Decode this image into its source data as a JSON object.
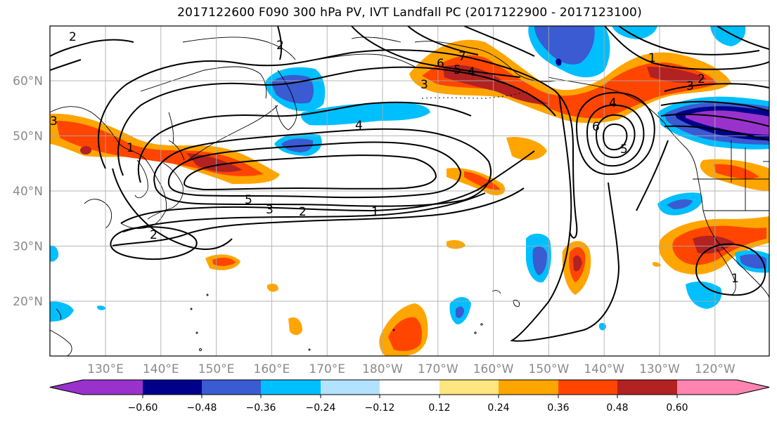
{
  "title": "2017122600 F090 300 hPa PV, IVT Landfall PC (2017122900 - 2017123100)",
  "lon_labels": [
    "130°E",
    "140°E",
    "150°E",
    "160°E",
    "170°E",
    "180°W",
    "170°W",
    "160°W",
    "150°W",
    "140°W",
    "130°W",
    "120°W"
  ],
  "lat_labels": [
    "60°N",
    "50°N",
    "40°N",
    "30°N",
    "20°N"
  ],
  "colorbar": {
    "ticks": [
      "−0.60",
      "−0.48",
      "−0.36",
      "−0.24",
      "−0.12",
      "0.12",
      "0.24",
      "0.36",
      "0.48",
      "0.60"
    ],
    "colors": [
      "#9932CC",
      "#00008B",
      "#3A5BD1",
      "#00BFFF",
      "#B3E2FF",
      "#FFFFFF",
      "#FFE680",
      "#FFA500",
      "#FF4500",
      "#B22222",
      "#FF85B0"
    ]
  },
  "contour_labels": [
    "1",
    "2",
    "3",
    "4",
    "5",
    "6",
    "7"
  ]
}
